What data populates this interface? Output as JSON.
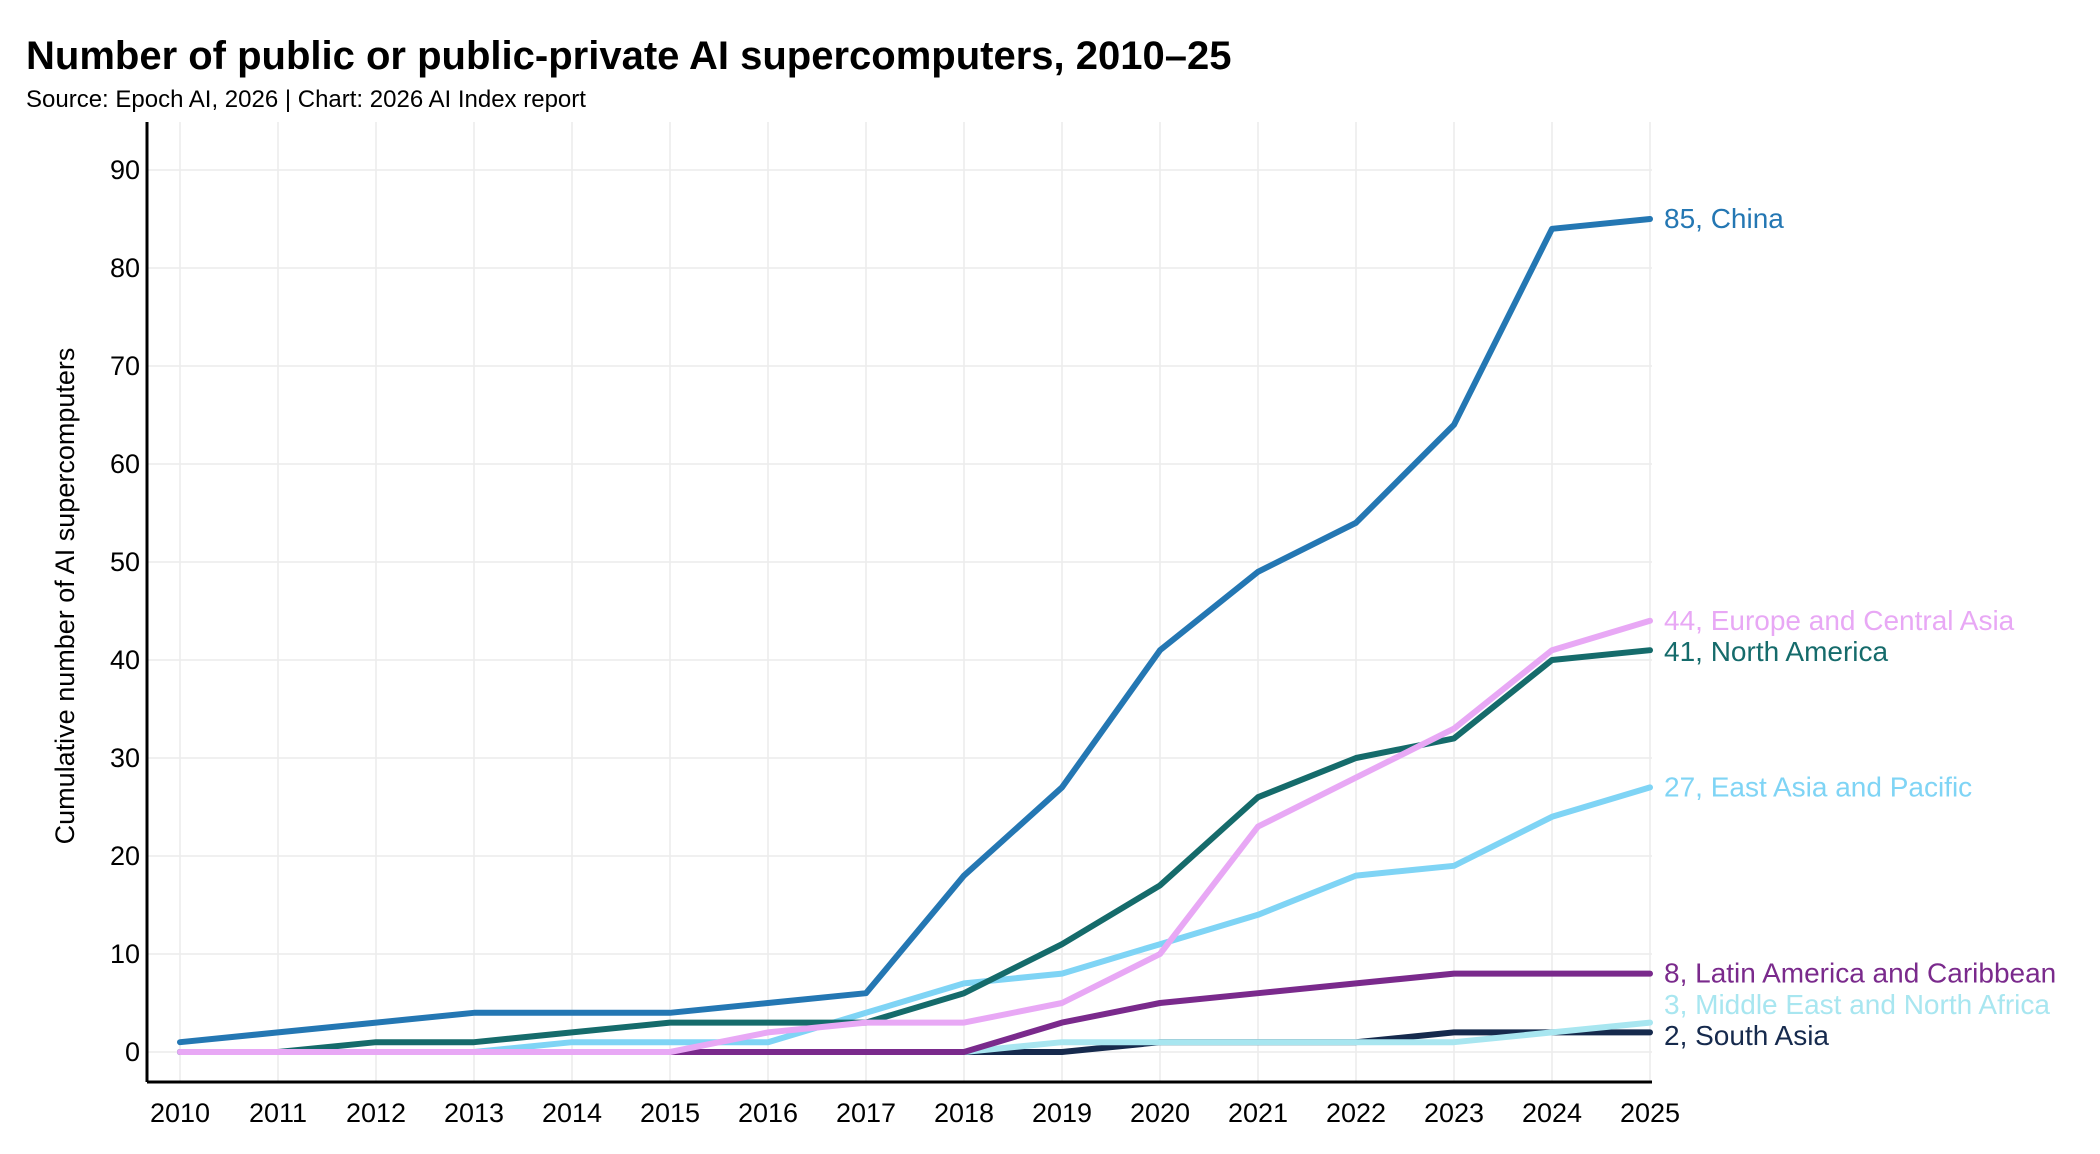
{
  "title": "Number of public or public-private AI supercomputers, 2010–25",
  "subtitle": "Source: Epoch AI, 2026 | Chart: 2026 AI Index report",
  "chart_data": {
    "type": "line",
    "title": "Number of public or public-private AI supercomputers, 2010–25",
    "xlabel": "",
    "ylabel": "Cumulative number of AI supercomputers",
    "x": [
      2010,
      2011,
      2012,
      2013,
      2014,
      2015,
      2016,
      2017,
      2018,
      2019,
      2020,
      2021,
      2022,
      2023,
      2024,
      2025
    ],
    "xlim": [
      2010,
      2025
    ],
    "ylim": [
      0,
      95
    ],
    "yticks": [
      0,
      10,
      20,
      30,
      40,
      50,
      60,
      70,
      80,
      90
    ],
    "grid": true,
    "legend": "end-of-line labels",
    "series": [
      {
        "name": "China",
        "color": "#2477b3",
        "label": "85, China",
        "values": [
          1,
          2,
          3,
          4,
          4,
          4,
          5,
          6,
          18,
          27,
          41,
          49,
          54,
          64,
          84,
          85
        ]
      },
      {
        "name": "Europe and Central Asia",
        "color": "#e8a8f5",
        "label": "44, Europe and Central Asia",
        "values": [
          0,
          0,
          0,
          0,
          0,
          0,
          2,
          3,
          3,
          5,
          10,
          23,
          28,
          33,
          41,
          44
        ]
      },
      {
        "name": "North America",
        "color": "#156b6b",
        "label": "41, North America",
        "values": [
          0,
          0,
          1,
          1,
          2,
          3,
          3,
          3,
          6,
          11,
          17,
          26,
          30,
          32,
          40,
          41
        ]
      },
      {
        "name": "East Asia and Pacific",
        "color": "#7fd4f5",
        "label": "27, East Asia and Pacific",
        "values": [
          0,
          0,
          0,
          0,
          1,
          1,
          1,
          4,
          7,
          8,
          11,
          14,
          18,
          19,
          24,
          27
        ]
      },
      {
        "name": "Latin America and Caribbean",
        "color": "#7a2a8c",
        "label": "8, Latin America and Caribbean",
        "values": [
          0,
          0,
          0,
          0,
          0,
          0,
          0,
          0,
          0,
          3,
          5,
          6,
          7,
          8,
          8,
          8
        ]
      },
      {
        "name": "Middle East and North Africa",
        "color": "#a8e6f0",
        "label": "3, Middle East and North Africa",
        "values": [
          0,
          0,
          0,
          0,
          0,
          0,
          0,
          0,
          0,
          1,
          1,
          1,
          1,
          1,
          2,
          3
        ]
      },
      {
        "name": "South Asia",
        "color": "#162a4d",
        "label": "2, South Asia",
        "values": [
          0,
          0,
          0,
          0,
          0,
          0,
          0,
          0,
          0,
          0,
          1,
          1,
          1,
          2,
          2,
          2
        ]
      }
    ]
  }
}
